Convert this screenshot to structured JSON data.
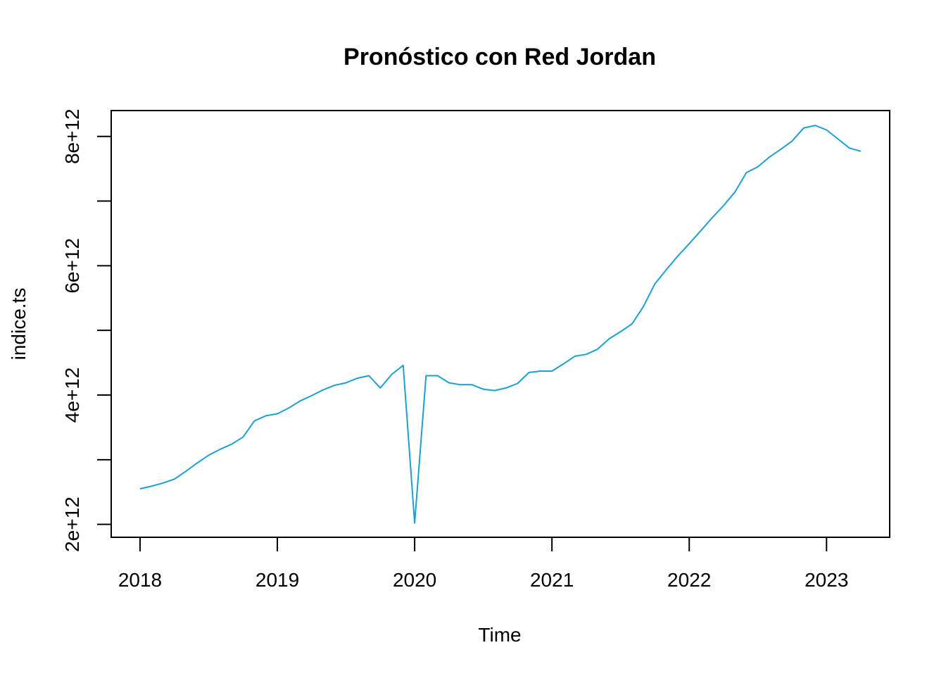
{
  "chart_data": {
    "type": "line",
    "title": "Pronóstico con Red Jordan",
    "xlabel": "Time",
    "ylabel": "indice.ts",
    "xlim": [
      2017.79,
      2023.46
    ],
    "ylim": [
      1800000000000.0,
      8400000000000.0
    ],
    "x_ticks": [
      2018,
      2019,
      2020,
      2021,
      2022,
      2023
    ],
    "x_tick_labels": [
      "2018",
      "2019",
      "2020",
      "2021",
      "2022",
      "2023"
    ],
    "y_ticks": [
      2000000000000.0,
      3000000000000.0,
      4000000000000.0,
      5000000000000.0,
      6000000000000.0,
      7000000000000.0,
      8000000000000.0
    ],
    "y_tick_labels": [
      "2e+12",
      "",
      "4e+12",
      "",
      "6e+12",
      "",
      "8e+12"
    ],
    "grid": false,
    "color": "#1a9fd6",
    "start": 2018,
    "frequency": 12,
    "values": [
      2550000000000.0,
      2590000000000.0,
      2640000000000.0,
      2700000000000.0,
      2820000000000.0,
      2950000000000.0,
      3070000000000.0,
      3160000000000.0,
      3240000000000.0,
      3350000000000.0,
      3600000000000.0,
      3680000000000.0,
      3710000000000.0,
      3800000000000.0,
      3910000000000.0,
      3990000000000.0,
      4080000000000.0,
      4150000000000.0,
      4190000000000.0,
      4260000000000.0,
      4300000000000.0,
      4110000000000.0,
      4320000000000.0,
      4460000000000.0,
      2020000000000.0,
      4300000000000.0,
      4300000000000.0,
      4190000000000.0,
      4160000000000.0,
      4160000000000.0,
      4090000000000.0,
      4070000000000.0,
      4110000000000.0,
      4180000000000.0,
      4350000000000.0,
      4370000000000.0,
      4370000000000.0,
      4480000000000.0,
      4600000000000.0,
      4630000000000.0,
      4710000000000.0,
      4870000000000.0,
      4980000000000.0,
      5100000000000.0,
      5370000000000.0,
      5720000000000.0,
      5940000000000.0,
      6150000000000.0,
      6340000000000.0,
      6540000000000.0,
      6740000000000.0,
      6930000000000.0,
      7140000000000.0,
      7440000000000.0,
      7530000000000.0,
      7680000000000.0,
      7800000000000.0,
      7930000000000.0,
      8130000000000.0,
      8170000000000.0,
      8100000000000.0,
      7960000000000.0,
      7820000000000.0,
      7770000000000.0
    ]
  }
}
